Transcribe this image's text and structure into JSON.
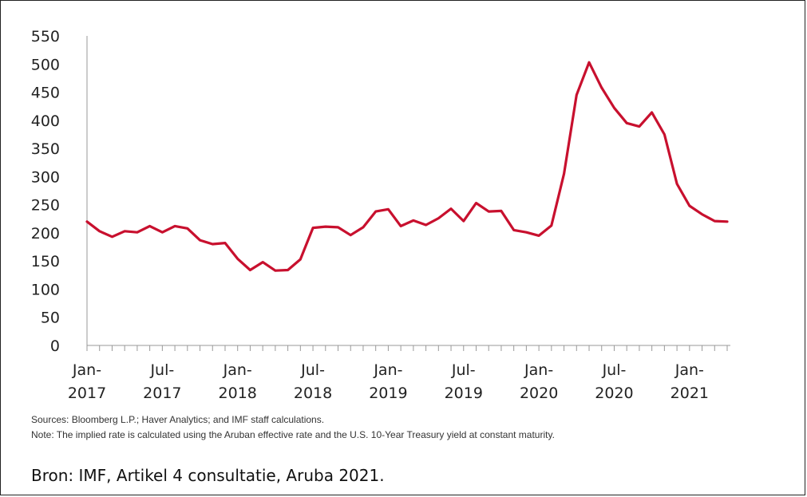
{
  "chart_data": {
    "type": "line",
    "title": "",
    "xlabel": "",
    "ylabel": "",
    "ylim": [
      0,
      550
    ],
    "yticks": [
      "550",
      "500",
      "450",
      "400",
      "350",
      "300",
      "250",
      "200",
      "150",
      "100",
      "50",
      "0"
    ],
    "xtick_labels": [
      [
        "Jan-",
        "2017"
      ],
      [
        "Jul-",
        "2017"
      ],
      [
        "Jan-",
        "2018"
      ],
      [
        "Jul-",
        "2018"
      ],
      [
        "Jan-",
        "2019"
      ],
      [
        "Jul-",
        "2019"
      ],
      [
        "Jan-",
        "2020"
      ],
      [
        "Jul-",
        "2020"
      ],
      [
        "Jan-",
        "2021"
      ]
    ],
    "grid": false,
    "line_color": "#c8102e",
    "series": [
      {
        "x": [
          "2017-01",
          "2017-02",
          "2017-03",
          "2017-04",
          "2017-05",
          "2017-06",
          "2017-07",
          "2017-08",
          "2017-09",
          "2017-10",
          "2017-11",
          "2017-12",
          "2018-01",
          "2018-02",
          "2018-03",
          "2018-04",
          "2018-05",
          "2018-06",
          "2018-07",
          "2018-08",
          "2018-09",
          "2018-10",
          "2018-11",
          "2018-12",
          "2019-01",
          "2019-02",
          "2019-03",
          "2019-04",
          "2019-05",
          "2019-06",
          "2019-07",
          "2019-08",
          "2019-09",
          "2019-10",
          "2019-11",
          "2019-12",
          "2020-01",
          "2020-02",
          "2020-03",
          "2020-04",
          "2020-05",
          "2020-06",
          "2020-07",
          "2020-08",
          "2020-09",
          "2020-10",
          "2020-11",
          "2020-12",
          "2021-01",
          "2021-02",
          "2021-03",
          "2021-04"
        ],
        "values": [
          220,
          203,
          193,
          203,
          201,
          212,
          201,
          212,
          208,
          187,
          180,
          182,
          154,
          134,
          148,
          133,
          134,
          153,
          209,
          211,
          210,
          196,
          210,
          238,
          242,
          212,
          222,
          214,
          226,
          243,
          221,
          253,
          238,
          239,
          205,
          201,
          195,
          213,
          305,
          445,
          503,
          458,
          422,
          395,
          389,
          414,
          375,
          287,
          248,
          233,
          221,
          220
        ]
      }
    ]
  },
  "notes": {
    "sources": "Sources: Bloomberg L.P.; Haver Analytics; and IMF staff calculations.",
    "note": "Note: The implied rate is calculated using the Aruban effective rate and the U.S. 10-Year Treasury yield at constant maturity."
  },
  "caption": "Bron: IMF, Artikel 4 consultatie, Aruba 2021."
}
